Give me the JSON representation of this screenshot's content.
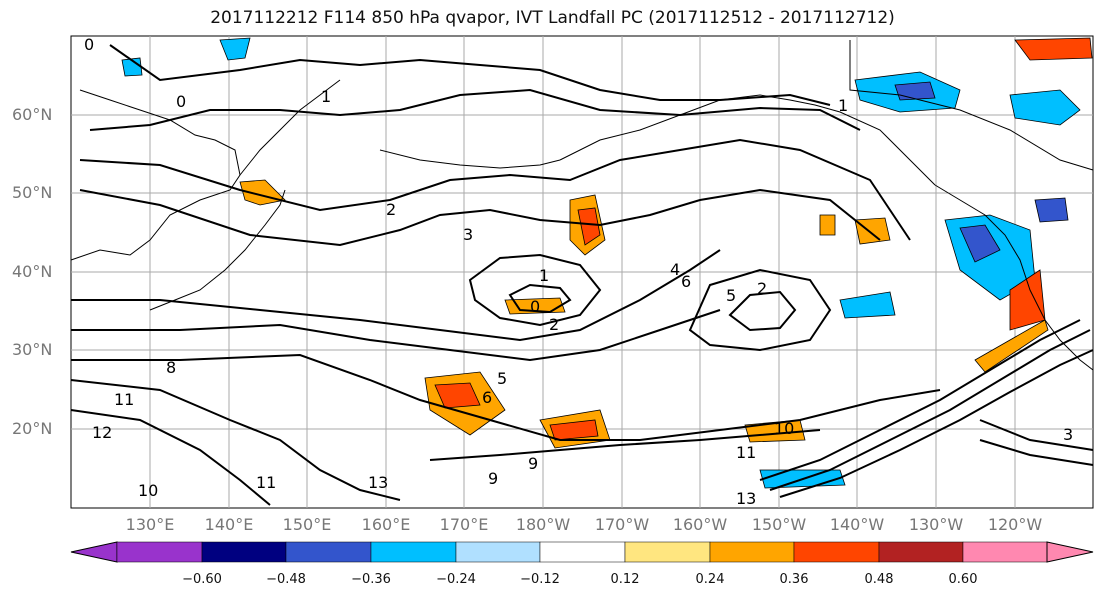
{
  "title": "2017112212 F114 850 hPa qvapor, IVT Landfall PC (2017112512 - 2017112712)",
  "lat_labels": [
    "60°N",
    "50°N",
    "40°N",
    "30°N",
    "20°N"
  ],
  "lon_labels": [
    "130°E",
    "140°E",
    "150°E",
    "160°E",
    "170°E",
    "180°W",
    "170°W",
    "160°W",
    "150°W",
    "140°W",
    "130°W",
    "120°W"
  ],
  "colorbar": {
    "ticks": [
      "−0.60",
      "−0.48",
      "−0.36",
      "−0.24",
      "−0.12",
      "0.12",
      "0.24",
      "0.36",
      "0.48",
      "0.60"
    ],
    "colors": [
      "#9933cc",
      "#000080",
      "#3355cc",
      "#00bfff",
      "#b0e0ff",
      "#ffffff",
      "#ffe680",
      "#ffa500",
      "#ff4500",
      "#b22222",
      "#ff88b0"
    ]
  },
  "contour_labels": [
    "0",
    "0",
    "1",
    "2",
    "3",
    "1",
    "0",
    "2",
    "6",
    "4",
    "5",
    "2",
    "5",
    "6",
    "8",
    "11",
    "12",
    "10",
    "11",
    "13",
    "9",
    "9",
    "10",
    "11",
    "13",
    "3",
    "1"
  ]
}
